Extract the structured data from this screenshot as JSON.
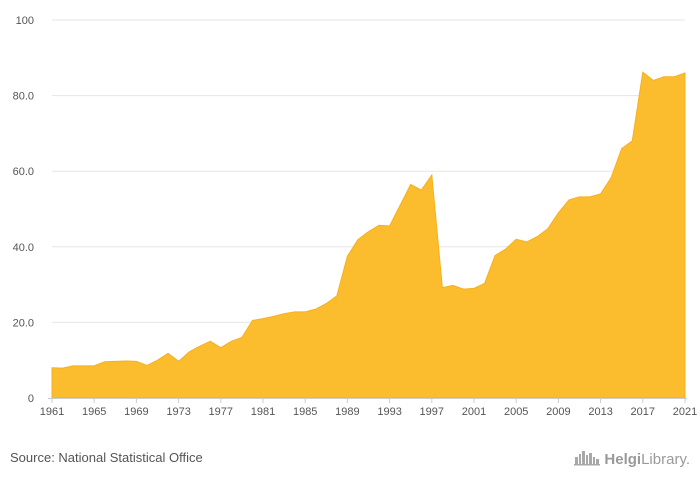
{
  "chart_data": {
    "type": "area",
    "title": "",
    "xlabel": "",
    "ylabel": "",
    "ylim": [
      0,
      100
    ],
    "xlim": [
      1961,
      2021
    ],
    "y_ticks": [
      "0",
      "20.0",
      "40.0",
      "60.0",
      "80.0",
      "100"
    ],
    "y_tick_values": [
      0,
      20,
      40,
      60,
      80,
      100
    ],
    "x_ticks": [
      "1961",
      "1965",
      "1969",
      "1973",
      "1977",
      "1981",
      "1985",
      "1989",
      "1993",
      "1997",
      "2001",
      "2005",
      "2009",
      "2013",
      "2017",
      "2021"
    ],
    "x_tick_values": [
      1961,
      1965,
      1969,
      1973,
      1977,
      1981,
      1985,
      1989,
      1993,
      1997,
      2001,
      2005,
      2009,
      2013,
      2017,
      2021
    ],
    "grid": true,
    "color": "#FBBD2E",
    "x": [
      1961,
      1962,
      1963,
      1964,
      1965,
      1966,
      1967,
      1968,
      1969,
      1970,
      1971,
      1972,
      1973,
      1974,
      1975,
      1976,
      1977,
      1978,
      1979,
      1980,
      1981,
      1982,
      1983,
      1984,
      1985,
      1986,
      1987,
      1988,
      1989,
      1990,
      1991,
      1992,
      1993,
      1994,
      1995,
      1996,
      1997,
      1998,
      1999,
      2000,
      2001,
      2002,
      2003,
      2004,
      2005,
      2006,
      2007,
      2008,
      2009,
      2010,
      2011,
      2012,
      2013,
      2014,
      2015,
      2016,
      2017,
      2018,
      2019,
      2020,
      2021
    ],
    "values": [
      8.0,
      7.9,
      8.5,
      8.5,
      8.5,
      9.6,
      9.7,
      9.8,
      9.7,
      8.6,
      10.0,
      11.8,
      9.7,
      12.2,
      13.7,
      15.0,
      13.3,
      15.0,
      16.0,
      20.5,
      21.0,
      21.6,
      22.3,
      22.8,
      22.8,
      23.5,
      25.0,
      27.0,
      37.5,
      41.9,
      44.0,
      45.7,
      45.5,
      51.0,
      56.5,
      55.0,
      59.0,
      29.2,
      29.8,
      28.8,
      29.0,
      30.3,
      37.7,
      39.4,
      42.0,
      41.3,
      42.7,
      44.8,
      49.0,
      52.4,
      53.2,
      53.2,
      54.0,
      58.3,
      66.0,
      68.0,
      86.2,
      84.0,
      85.0,
      85.0,
      86.0
    ]
  },
  "footer": {
    "source": "Source: National Statistical Office",
    "logo_strong": "Helgi",
    "logo_rest": "Library."
  }
}
